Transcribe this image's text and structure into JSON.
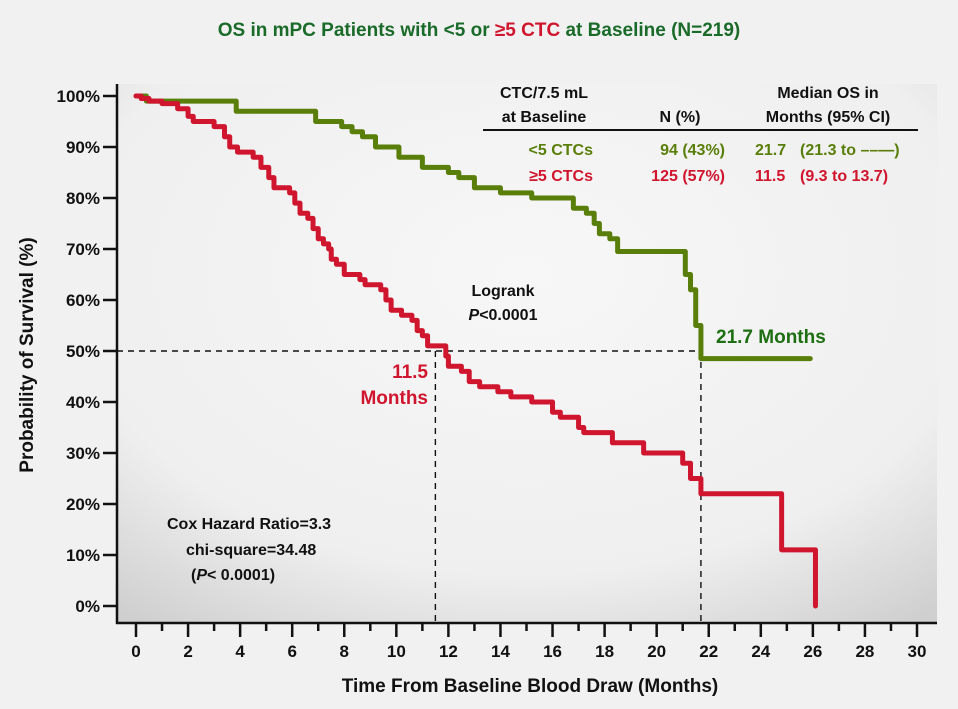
{
  "chart_data": {
    "type": "line",
    "subtype": "kaplan-meier step",
    "title": {
      "parts": [
        {
          "text": "OS in mPC Patients with <5 or ",
          "color": "#1a6b2a"
        },
        {
          "text": "≥5 CTC",
          "color": "#d0152e"
        },
        {
          "text": " at Baseline (N=219)",
          "color": "#1a6b2a"
        }
      ]
    },
    "xlabel": "Time From Baseline Blood Draw (Months)",
    "ylabel": "Probability of Survival (%)",
    "xlim": [
      0,
      30
    ],
    "ylim": [
      0,
      100
    ],
    "xticks": [
      "0",
      "2",
      "4",
      "6",
      "8",
      "10",
      "12",
      "14",
      "16",
      "18",
      "20",
      "22",
      "24",
      "26",
      "28",
      "30"
    ],
    "xtick_values": [
      0,
      2,
      4,
      6,
      8,
      10,
      12,
      14,
      16,
      18,
      20,
      22,
      24,
      26,
      28,
      30
    ],
    "yticks": [
      "0%",
      "10%",
      "20%",
      "30%",
      "40%",
      "50%",
      "60%",
      "70%",
      "80%",
      "90%",
      "100%"
    ],
    "ytick_values": [
      0,
      10,
      20,
      30,
      40,
      50,
      60,
      70,
      80,
      90,
      100
    ],
    "grid": false,
    "series": [
      {
        "name": "<5 CTCs",
        "color": "#5a7e0a",
        "steps": [
          [
            0,
            100
          ],
          [
            0.4,
            99
          ],
          [
            3.85,
            97
          ],
          [
            6.9,
            95
          ],
          [
            7.9,
            94
          ],
          [
            8.3,
            93
          ],
          [
            8.7,
            92
          ],
          [
            9.2,
            90
          ],
          [
            10.1,
            88
          ],
          [
            11,
            86
          ],
          [
            12,
            85
          ],
          [
            12.4,
            84
          ],
          [
            13,
            82
          ],
          [
            14,
            81
          ],
          [
            15.2,
            80
          ],
          [
            16.8,
            78
          ],
          [
            17.3,
            77
          ],
          [
            17.6,
            75
          ],
          [
            17.8,
            73
          ],
          [
            18.2,
            72
          ],
          [
            18.5,
            69.5
          ],
          [
            21.1,
            65
          ],
          [
            21.3,
            62
          ],
          [
            21.5,
            55
          ],
          [
            21.7,
            48.5
          ]
        ],
        "end_x": 25.9
      },
      {
        "name": "≥5 CTCs",
        "color": "#d0152e",
        "steps": [
          [
            0,
            100
          ],
          [
            0.2,
            99.5
          ],
          [
            0.5,
            99
          ],
          [
            1,
            98.5
          ],
          [
            1.6,
            97.5
          ],
          [
            2,
            96
          ],
          [
            2.2,
            95
          ],
          [
            3,
            94
          ],
          [
            3.4,
            92
          ],
          [
            3.6,
            90
          ],
          [
            3.9,
            89
          ],
          [
            4.5,
            88
          ],
          [
            4.8,
            86
          ],
          [
            5.1,
            84
          ],
          [
            5.3,
            82
          ],
          [
            5.9,
            81
          ],
          [
            6.1,
            79
          ],
          [
            6.3,
            77
          ],
          [
            6.6,
            76
          ],
          [
            6.8,
            74
          ],
          [
            7,
            72
          ],
          [
            7.2,
            71
          ],
          [
            7.4,
            70
          ],
          [
            7.5,
            68
          ],
          [
            7.7,
            67
          ],
          [
            8,
            65
          ],
          [
            8.6,
            64
          ],
          [
            8.8,
            63
          ],
          [
            9.4,
            62
          ],
          [
            9.6,
            60
          ],
          [
            9.8,
            58
          ],
          [
            10.2,
            57
          ],
          [
            10.6,
            56
          ],
          [
            10.8,
            54
          ],
          [
            11,
            53
          ],
          [
            11.2,
            51
          ],
          [
            11.9,
            49
          ],
          [
            12,
            47
          ],
          [
            12.5,
            46
          ],
          [
            12.8,
            44
          ],
          [
            13.2,
            43
          ],
          [
            13.9,
            42
          ],
          [
            14.4,
            41
          ],
          [
            15.2,
            40
          ],
          [
            16,
            38
          ],
          [
            16.3,
            37
          ],
          [
            17,
            35
          ],
          [
            17.2,
            34
          ],
          [
            18.3,
            32
          ],
          [
            19.5,
            30
          ],
          [
            21,
            28
          ],
          [
            21.3,
            25
          ],
          [
            21.7,
            22
          ],
          [
            24.8,
            11
          ],
          [
            26.1,
            0
          ]
        ],
        "end_x": 26.1
      }
    ],
    "reference_lines": {
      "median_y": 50,
      "median_x": [
        11.5,
        21.7
      ]
    },
    "annotations": {
      "green_median": "21.7 Months",
      "red_median_line1": "11.5",
      "red_median_line2": "Months",
      "logrank_line1": "Logrank",
      "logrank_p_italic": "P",
      "logrank_p_rest": "<0.0001",
      "cox_line1": "Cox Hazard Ratio=3.3",
      "cox_line2": "chi-square=34.48",
      "cox_line3_open": "(",
      "cox_line3_italic": "P",
      "cox_line3_rest": "< 0.0001)"
    },
    "table": {
      "headers": [
        [
          "CTC/7.5 mL",
          "at Baseline"
        ],
        [
          "",
          "N (%)"
        ],
        [
          "Median OS in",
          "Months (95% CI)"
        ]
      ],
      "rows": [
        {
          "group": "<5 CTCs",
          "n": "94 (43%)",
          "median": "21.7",
          "ci": "(21.3 to ––—)",
          "color": "#5a7e0a"
        },
        {
          "group": "≥5 CTCs",
          "n": "125 (57%)",
          "median": "11.5",
          "ci": "(9.3 to 13.7)",
          "color": "#d0152e"
        }
      ]
    }
  }
}
